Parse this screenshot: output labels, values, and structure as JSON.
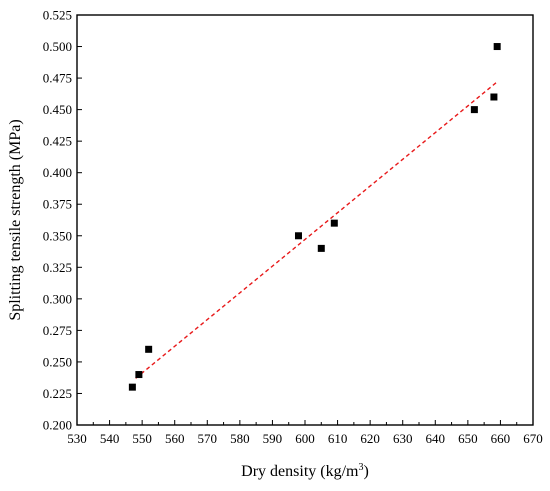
{
  "chart_data": {
    "type": "scatter",
    "xlabel": "Dry density (kg/m",
    "xlabel_superscript": "3",
    "xlabel_suffix": ")",
    "ylabel": "Splitting tensile strength (MPa)",
    "xlim": [
      530,
      670
    ],
    "ylim": [
      0.2,
      0.525
    ],
    "x_ticks": [
      "530",
      "540",
      "550",
      "560",
      "570",
      "580",
      "590",
      "600",
      "610",
      "620",
      "630",
      "640",
      "650",
      "660",
      "670"
    ],
    "y_ticks": [
      "0.200",
      "0.225",
      "0.250",
      "0.275",
      "0.300",
      "0.325",
      "0.350",
      "0.375",
      "0.400",
      "0.425",
      "0.450",
      "0.475",
      "0.500",
      "0.525"
    ],
    "grid": false,
    "legend": "none",
    "points": [
      {
        "x": 547,
        "y": 0.23
      },
      {
        "x": 549,
        "y": 0.24
      },
      {
        "x": 552,
        "y": 0.26
      },
      {
        "x": 598,
        "y": 0.35
      },
      {
        "x": 605,
        "y": 0.34
      },
      {
        "x": 609,
        "y": 0.36
      },
      {
        "x": 652,
        "y": 0.45
      },
      {
        "x": 658,
        "y": 0.46
      },
      {
        "x": 659,
        "y": 0.5
      }
    ],
    "trendline": {
      "style": "dashed",
      "color": "#e8191a",
      "start": {
        "x": 548,
        "y": 0.237
      },
      "end": {
        "x": 659,
        "y": 0.472
      }
    },
    "marker": {
      "shape": "square",
      "color": "#000000"
    }
  }
}
